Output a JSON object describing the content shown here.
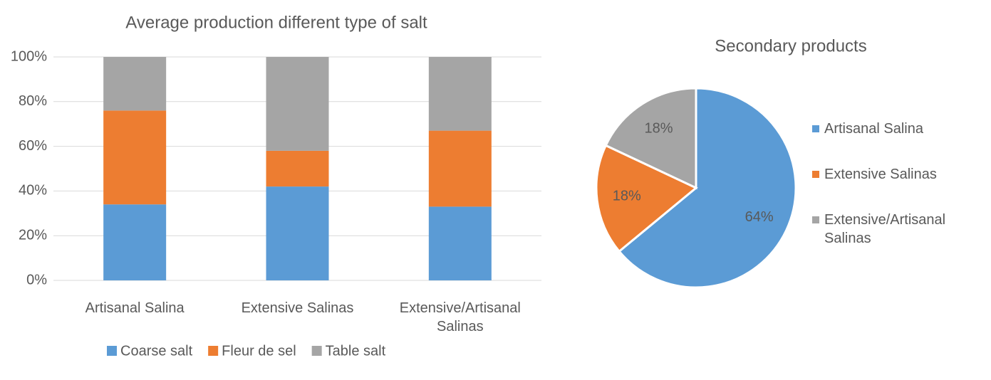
{
  "chart_data": [
    {
      "type": "bar",
      "stacked": true,
      "title": "Average production different type of salt",
      "categories": [
        "Artisanal Salina",
        "Extensive Salinas",
        "Extensive/Artisanal Salinas"
      ],
      "series": [
        {
          "name": "Coarse salt",
          "color": "#5b9bd5",
          "values": [
            34,
            42,
            33
          ]
        },
        {
          "name": "Fleur de sel",
          "color": "#ed7d31",
          "values": [
            42,
            16,
            34
          ]
        },
        {
          "name": "Table salt",
          "color": "#a5a5a5",
          "values": [
            24,
            42,
            33
          ]
        }
      ],
      "ylim": [
        0,
        100
      ],
      "yticks": [
        {
          "value": 0,
          "label": "0%"
        },
        {
          "value": 20,
          "label": "20%"
        },
        {
          "value": 40,
          "label": "40%"
        },
        {
          "value": 60,
          "label": "60%"
        },
        {
          "value": 80,
          "label": "80%"
        },
        {
          "value": 100,
          "label": "100%"
        }
      ],
      "grid": true,
      "legend": "bottom"
    },
    {
      "type": "pie",
      "title": "Secondary products",
      "categories": [
        "Artisanal Salina",
        "Extensive Salinas",
        "Extensive/Artisanal Salinas"
      ],
      "values": [
        64,
        18,
        18
      ],
      "value_labels": [
        "64%",
        "18%",
        "18%"
      ],
      "colors": [
        "#5b9bd5",
        "#ed7d31",
        "#a5a5a5"
      ],
      "legend": "right"
    }
  ]
}
